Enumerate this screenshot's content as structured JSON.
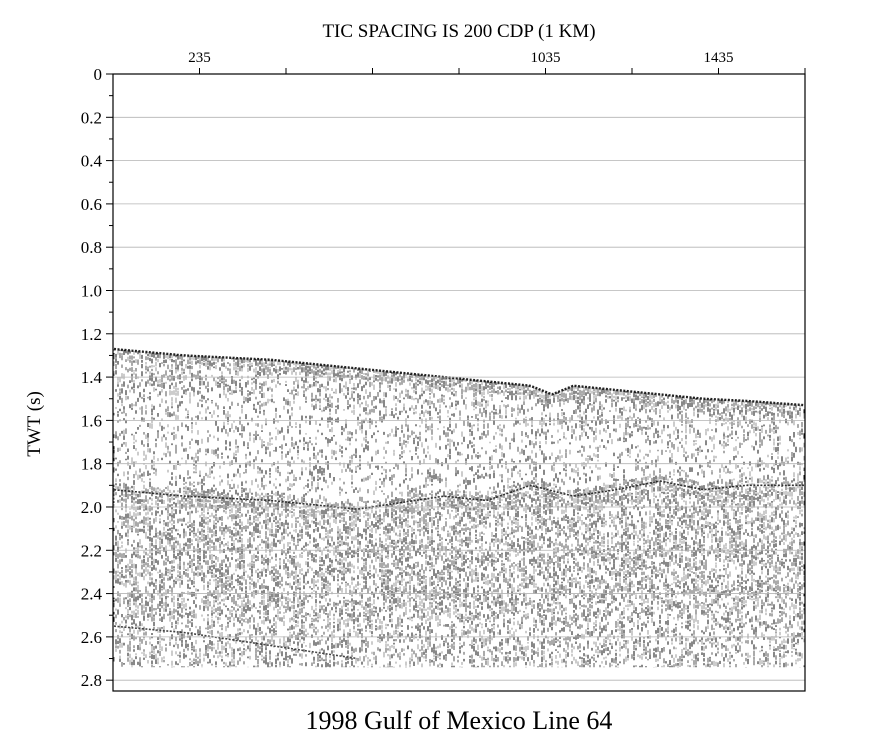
{
  "chart_data": {
    "type": "heatmap",
    "title": "1998 Gulf of Mexico Line 64",
    "top_axis_label": "TIC SPACING IS 200 CDP (1 KM)",
    "ylabel": "TWT (s)",
    "x_tick_labels": [
      {
        "label": "235",
        "value": 235
      },
      {
        "label": "1035",
        "value": 1035
      },
      {
        "label": "1435",
        "value": 1435
      }
    ],
    "x_tick_values": [
      235,
      435,
      635,
      835,
      1035,
      1235,
      1435,
      1635
    ],
    "xlim": [
      35,
      1635
    ],
    "y_ticks": [
      {
        "label": "0",
        "value": 0.0
      },
      {
        "label": "0.2",
        "value": 0.2
      },
      {
        "label": "0.4",
        "value": 0.4
      },
      {
        "label": "0.6",
        "value": 0.6
      },
      {
        "label": "0.8",
        "value": 0.8
      },
      {
        "label": "1.0",
        "value": 1.0
      },
      {
        "label": "1.2",
        "value": 1.2
      },
      {
        "label": "1.4",
        "value": 1.4
      },
      {
        "label": "1.6",
        "value": 1.6
      },
      {
        "label": "1.8",
        "value": 1.8
      },
      {
        "label": "2.0",
        "value": 2.0
      },
      {
        "label": "2.2",
        "value": 2.2
      },
      {
        "label": "2.4",
        "value": 2.4
      },
      {
        "label": "2.6",
        "value": 2.6
      },
      {
        "label": "2.8",
        "value": 2.8
      }
    ],
    "ylim": [
      0,
      2.85
    ],
    "y_inverted": true,
    "grid": true,
    "seafloor_horizon": {
      "cdp": [
        35,
        200,
        400,
        600,
        800,
        1000,
        1050,
        1100,
        1200,
        1300,
        1400,
        1500,
        1635
      ],
      "twt": [
        1.27,
        1.3,
        1.32,
        1.36,
        1.4,
        1.44,
        1.48,
        1.44,
        1.46,
        1.48,
        1.5,
        1.51,
        1.53
      ]
    },
    "strong_reflector": {
      "cdp": [
        35,
        200,
        400,
        600,
        800,
        900,
        1000,
        1100,
        1200,
        1300,
        1400,
        1500,
        1635
      ],
      "twt": [
        1.92,
        1.95,
        1.97,
        2.01,
        1.95,
        1.97,
        1.9,
        1.95,
        1.92,
        1.88,
        1.92,
        1.9,
        1.9
      ]
    },
    "deep_reflector": {
      "cdp": [
        35,
        200,
        400,
        600
      ],
      "twt": [
        2.55,
        2.58,
        2.64,
        2.7
      ]
    },
    "data_end_twt": 2.74,
    "colors": {
      "background": "#ffffff",
      "ink": "#000000",
      "grid": "#b4b4b4"
    }
  }
}
